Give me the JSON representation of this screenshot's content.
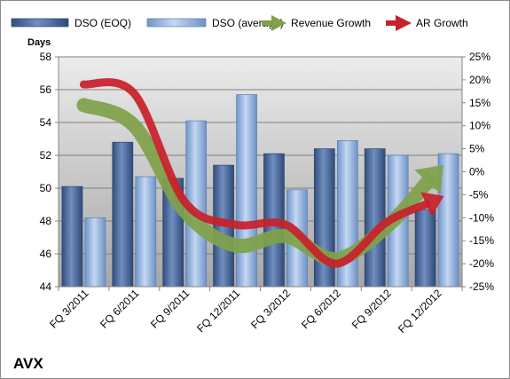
{
  "chart_data": {
    "type": "bar",
    "title": "AVX",
    "ylabel": "Days",
    "categories": [
      "FQ 3/2011",
      "FQ 6/2011",
      "FQ 9/2011",
      "FQ 12/2011",
      "FQ 3/2012",
      "FQ 6/2012",
      "FQ 9/2012",
      "FQ 12/2012"
    ],
    "ylim": [
      44,
      58
    ],
    "yticks": [
      44,
      46,
      48,
      50,
      52,
      54,
      56,
      58
    ],
    "y2lim": [
      -25,
      25
    ],
    "y2ticks": [
      "-25%",
      "-20%",
      "-15%",
      "-10%",
      "-5%",
      "0%",
      "5%",
      "10%",
      "15%",
      "20%",
      "25%"
    ],
    "series": [
      {
        "name": "DSO (EOQ)",
        "kind": "bar",
        "color": "#4a6a9c",
        "values": [
          50.1,
          52.8,
          50.6,
          51.4,
          52.1,
          52.4,
          52.4,
          48.7
        ]
      },
      {
        "name": "DSO (average)",
        "kind": "bar",
        "color": "#9fbce4",
        "values": [
          48.2,
          50.7,
          54.1,
          55.7,
          49.9,
          52.9,
          52.0,
          52.1
        ]
      },
      {
        "name": "Revenue Growth",
        "kind": "line",
        "axis": "right",
        "unit": "%",
        "color": "#7fa14a",
        "values": [
          14.5,
          10,
          -8.5,
          -16,
          -14,
          -19,
          -12,
          0
        ]
      },
      {
        "name": "AR Growth",
        "kind": "line",
        "axis": "right",
        "unit": "%",
        "color": "#c8202a",
        "values": [
          19,
          17,
          -6.5,
          -11.5,
          -11.5,
          -20,
          -11,
          -6
        ]
      }
    ],
    "grid": true,
    "legend": "top",
    "legend_entries": [
      "DSO (EOQ)",
      "DSO (average)",
      "Revenue Growth",
      "AR Growth"
    ]
  }
}
